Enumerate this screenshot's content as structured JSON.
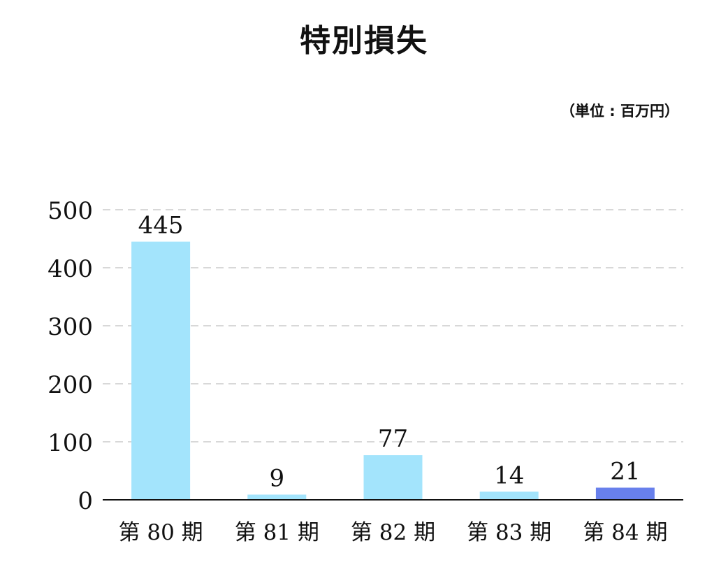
{
  "chart_data": {
    "type": "bar",
    "title": "特別損失",
    "unit": "（単位 : 百万円）",
    "categories": [
      "第 80 期",
      "第 81 期",
      "第 82 期",
      "第 83 期",
      "第 84 期"
    ],
    "values": [
      445,
      9,
      77,
      14,
      21
    ],
    "bar_colors": [
      "#a3e4fc",
      "#a3e4fc",
      "#a3e4fc",
      "#a3e4fc",
      "#6880ec"
    ],
    "ylim": [
      0,
      500
    ],
    "yticks": [
      0,
      100,
      200,
      300,
      400,
      500
    ],
    "xlabel": "",
    "ylabel": "",
    "grid": true,
    "grid_color": "#cccccc",
    "axis_color": "#111111"
  }
}
